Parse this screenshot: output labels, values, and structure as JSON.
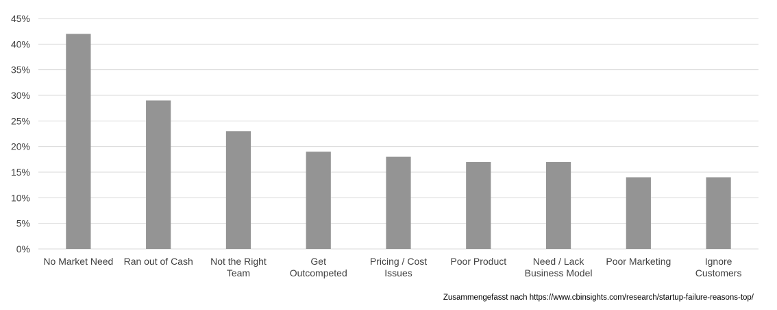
{
  "chart_data": {
    "type": "bar",
    "categories": [
      [
        "No Market Need"
      ],
      [
        "Ran out of Cash"
      ],
      [
        "Not the Right",
        "Team"
      ],
      [
        "Get",
        "Outcompeted"
      ],
      [
        "Pricing / Cost",
        "Issues"
      ],
      [
        "Poor Product"
      ],
      [
        "Need / Lack",
        "Business Model"
      ],
      [
        "Poor Marketing"
      ],
      [
        "Ignore",
        "Customers"
      ]
    ],
    "values": [
      42,
      29,
      23,
      19,
      18,
      17,
      17,
      14,
      14
    ],
    "ylim": [
      0,
      45
    ],
    "ytick_step": 5,
    "ytick_suffix": "%",
    "grid": true,
    "bar_color": "#949494",
    "grid_color": "#d9d9d9"
  },
  "source_note": "Zusammengefasst nach https://www.cbinsights.com/research/startup-failure-reasons-top/"
}
